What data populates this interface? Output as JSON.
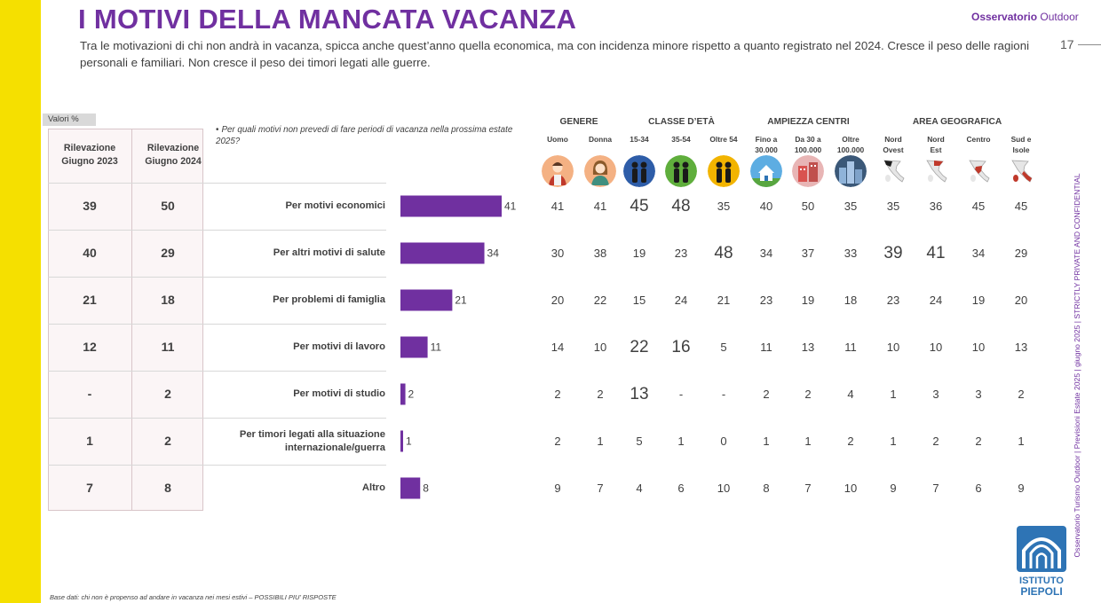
{
  "header": {
    "title": "I MOTIVI DELLA MANCATA VACANZA",
    "brand_bold": "Osservatorio",
    "brand_regular": " Outdoor",
    "subtitle": "Tra le motivazioni di chi non andrà in vacanza, spicca anche quest’anno quella economica, ma con incidenza minore rispetto a quanto registrato nel 2024. Cresce il peso delle ragioni personali e familiari. Non cresce il peso dei timori legati alle guerre.",
    "page_number": "17"
  },
  "side_note": "Osservatorio Turismo Outdoor  |  Previsioni Estate 2025  |  giugno 2025  |  STRICTLY PRIVATE AND CONFIDENTIAL",
  "valori_label": "Valori %",
  "question": "Per quali motivi non prevedi di fare periodi di vacanza nella prossima estate 2025?",
  "footnote": "Base dati: chi non è propenso ad andare  in vacanza nei mesi estivi – POSSIBILI PIU’ RISPOSTE",
  "logo": {
    "line1": "ISTITUTO",
    "line2": "PIEPOLI"
  },
  "colors": {
    "accent": "#7030a0",
    "bar": "#7030a0",
    "yellow": "#f5e000"
  },
  "chart_data": {
    "type": "bar",
    "orientation": "horizontal",
    "categories": [
      "Per motivi economici",
      "Per altri motivi di salute",
      "Per problemi di famiglia",
      "Per motivi di lavoro",
      "Per motivi di studio",
      "Per timori legati alla situazione internazionale/guerra",
      "Altro"
    ],
    "category_lines": [
      [
        "Per motivi economici"
      ],
      [
        "Per altri motivi di salute"
      ],
      [
        "Per problemi di famiglia"
      ],
      [
        "Per motivi di lavoro"
      ],
      [
        "Per motivi di studio"
      ],
      [
        "Per timori legati alla situazione",
        "internazionale/guerra"
      ],
      [
        "Altro"
      ]
    ],
    "values": [
      41,
      34,
      21,
      11,
      2,
      1,
      8
    ],
    "xlim": [
      0,
      41
    ],
    "history": {
      "headers": [
        [
          "Rilevazione",
          "Giugno 2023"
        ],
        [
          "Rilevazione",
          "Giugno 2024"
        ]
      ],
      "giugno_2023": [
        "39",
        "40",
        "21",
        "12",
        "-",
        "1",
        "7"
      ],
      "giugno_2024": [
        "50",
        "29",
        "18",
        "11",
        "2",
        "2",
        "8"
      ]
    },
    "breakdown": {
      "groups": [
        {
          "label": "GENERE",
          "columns": [
            0,
            1
          ]
        },
        {
          "label": "CLASSE D’ETÀ",
          "columns": [
            2,
            3,
            4
          ]
        },
        {
          "label": "AMPIEZZA CENTRI",
          "columns": [
            5,
            6,
            7
          ]
        },
        {
          "label": "AREA GEOGRAFICA",
          "columns": [
            8,
            9,
            10,
            11
          ]
        }
      ],
      "columns": [
        {
          "label": [
            "Uomo"
          ],
          "icon": "man-icon"
        },
        {
          "label": [
            "Donna"
          ],
          "icon": "woman-icon"
        },
        {
          "label": [
            "15-34"
          ],
          "icon": "young-couple-icon"
        },
        {
          "label": [
            "35-54"
          ],
          "icon": "adult-couple-icon"
        },
        {
          "label": [
            "Oltre 54"
          ],
          "icon": "senior-couple-icon"
        },
        {
          "label": [
            "Fino a",
            "30.000"
          ],
          "icon": "small-town-icon"
        },
        {
          "label": [
            "Da 30 a",
            "100.000"
          ],
          "icon": "medium-town-icon"
        },
        {
          "label": [
            "Oltre",
            "100.000"
          ],
          "icon": "city-icon"
        },
        {
          "label": [
            "Nord",
            "Ovest"
          ],
          "icon": "italy-north-west-map-icon"
        },
        {
          "label": [
            "Nord",
            "Est"
          ],
          "icon": "italy-north-east-map-icon"
        },
        {
          "label": [
            "Centro"
          ],
          "icon": "italy-center-map-icon"
        },
        {
          "label": [
            "Sud e",
            "Isole"
          ],
          "icon": "italy-south-islands-map-icon"
        }
      ],
      "rows": [
        [
          "41",
          "41",
          "45",
          "48",
          "35",
          "40",
          "50",
          "35",
          "35",
          "36",
          "45",
          "45"
        ],
        [
          "30",
          "38",
          "19",
          "23",
          "48",
          "34",
          "37",
          "33",
          "39",
          "41",
          "34",
          "29"
        ],
        [
          "20",
          "22",
          "15",
          "24",
          "21",
          "23",
          "19",
          "18",
          "23",
          "24",
          "19",
          "20"
        ],
        [
          "14",
          "10",
          "22",
          "16",
          "5",
          "11",
          "13",
          "11",
          "10",
          "10",
          "10",
          "13"
        ],
        [
          "2",
          "2",
          "13",
          "-",
          "-",
          "2",
          "2",
          "4",
          "1",
          "3",
          "3",
          "2"
        ],
        [
          "2",
          "1",
          "5",
          "1",
          "0",
          "1",
          "1",
          "2",
          "1",
          "2",
          "2",
          "1"
        ],
        [
          "9",
          "7",
          "4",
          "6",
          "10",
          "8",
          "7",
          "10",
          "9",
          "7",
          "6",
          "9"
        ]
      ],
      "highlighted": [
        [
          0,
          2
        ],
        [
          0,
          3
        ],
        [
          1,
          4
        ],
        [
          1,
          8
        ],
        [
          1,
          9
        ],
        [
          3,
          2
        ],
        [
          3,
          3
        ],
        [
          4,
          2
        ]
      ]
    }
  }
}
